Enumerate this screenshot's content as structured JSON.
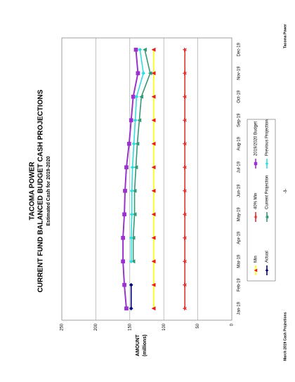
{
  "chart_data": {
    "type": "line",
    "title": "TACOMA POWER",
    "subtitle": "CURRENT FUND BALANCED BUDGET CASH PROJECTIONS",
    "subtitle2": "Estimated Cash for 2019-2020",
    "ylabel": "AMOUNT",
    "ylabel2": "(millions)",
    "categories": [
      "Jan-19",
      "Feb-19",
      "Mar-19",
      "Apr-19",
      "May-19",
      "Jun-19",
      "Jul-19",
      "Aug-19",
      "Sep-19",
      "Oct-19",
      "Nov-19",
      "Dec-19"
    ],
    "ylim": [
      0,
      250
    ],
    "yticks": [
      0,
      50,
      100,
      150,
      200,
      250
    ],
    "grid": true,
    "series": [
      {
        "name": "Min",
        "color": "#ffff00",
        "marker": "triangle",
        "marker_color": "#dd2222",
        "values": [
          115,
          115,
          115,
          115,
          115,
          115,
          115,
          115,
          115,
          115,
          115,
          115
        ]
      },
      {
        "name": "Actual",
        "color": "#000080",
        "marker": "diamond",
        "marker_color": "#000080",
        "values": [
          148,
          148,
          null,
          null,
          null,
          null,
          null,
          null,
          null,
          null,
          null,
          null
        ]
      },
      {
        "name": "40% Min",
        "color": "#dd3333",
        "marker": "star",
        "marker_color": "#dd3333",
        "values": [
          69,
          69,
          69,
          69,
          69,
          69,
          69,
          69,
          69,
          69,
          69,
          69
        ]
      },
      {
        "name": "Current Projection",
        "color": "#339977",
        "marker": "triangle",
        "marker_color": "#339977",
        "values": [
          null,
          null,
          145,
          145,
          143,
          143,
          141,
          139,
          136,
          133,
          120,
          128
        ]
      },
      {
        "name": "2019/2020 Budget",
        "color": "#9933cc",
        "marker": "square",
        "marker_color": "#9933cc",
        "values": [
          155,
          158,
          160,
          160,
          158,
          157,
          155,
          151,
          148,
          145,
          138,
          141
        ]
      },
      {
        "name": "Previous Projection",
        "color": "#33dddd",
        "marker": "diamond",
        "marker_color": "#33dddd",
        "values": [
          null,
          null,
          148,
          148,
          147,
          147,
          146,
          144,
          142,
          140,
          130,
          135
        ]
      }
    ]
  },
  "footer": {
    "left": "March 2019 Cash Projections",
    "center": "-1-",
    "right": "Tacoma Power"
  }
}
